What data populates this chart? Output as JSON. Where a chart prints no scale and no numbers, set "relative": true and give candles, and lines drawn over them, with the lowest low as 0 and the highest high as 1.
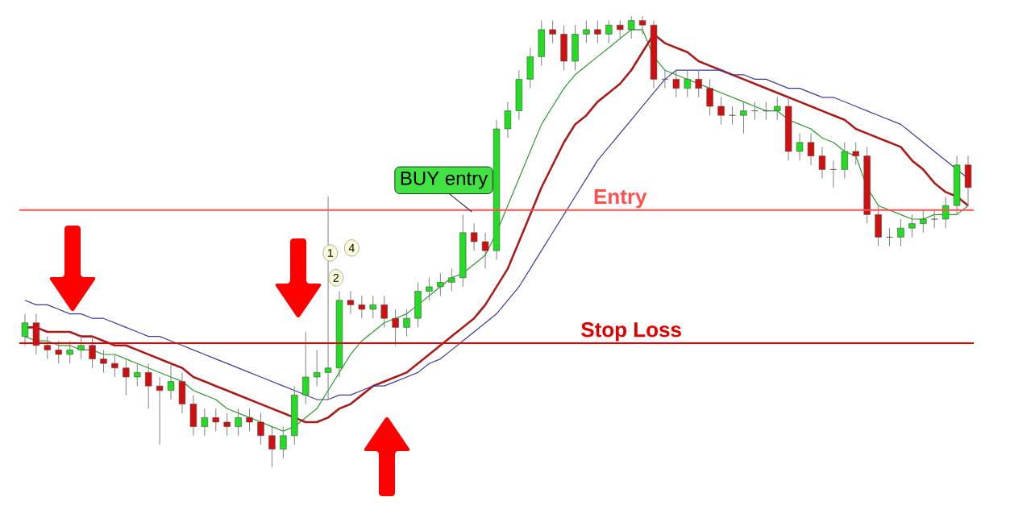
{
  "chart_data": {
    "type": "candlestick",
    "relative": true,
    "categories": [
      null,
      null,
      null,
      null,
      null,
      null,
      null,
      null,
      null,
      null,
      null,
      null,
      null,
      null,
      null,
      null,
      null,
      null,
      null,
      null,
      null,
      null,
      null,
      null,
      null,
      null,
      null,
      null,
      null,
      null,
      null,
      null,
      null,
      null,
      null,
      null,
      null,
      null,
      null,
      null,
      null,
      null,
      null,
      null,
      null,
      null,
      null,
      null,
      null,
      null,
      null,
      null,
      null,
      null,
      null,
      null,
      null,
      null,
      null,
      null,
      null,
      null,
      null,
      null,
      null,
      null,
      null,
      null,
      null,
      null,
      null,
      null,
      null,
      null,
      null,
      null,
      null,
      null,
      null,
      null,
      null,
      null,
      null,
      null,
      null
    ],
    "ohlc": [
      [
        0.29,
        0.34,
        0.27,
        0.32
      ],
      [
        0.32,
        0.34,
        0.25,
        0.27
      ],
      [
        0.27,
        0.29,
        0.24,
        0.26
      ],
      [
        0.26,
        0.28,
        0.23,
        0.25
      ],
      [
        0.25,
        0.28,
        0.23,
        0.26
      ],
      [
        0.26,
        0.29,
        0.24,
        0.27
      ],
      [
        0.27,
        0.29,
        0.22,
        0.24
      ],
      [
        0.24,
        0.26,
        0.21,
        0.23
      ],
      [
        0.23,
        0.25,
        0.2,
        0.22
      ],
      [
        0.22,
        0.24,
        0.16,
        0.2
      ],
      [
        0.2,
        0.23,
        0.18,
        0.21
      ],
      [
        0.21,
        0.23,
        0.13,
        0.18
      ],
      [
        0.18,
        0.2,
        0.05,
        0.17
      ],
      [
        0.17,
        0.23,
        0.15,
        0.19
      ],
      [
        0.19,
        0.21,
        0.12,
        0.14
      ],
      [
        0.14,
        0.16,
        0.07,
        0.09
      ],
      [
        0.09,
        0.13,
        0.07,
        0.11
      ],
      [
        0.11,
        0.13,
        0.08,
        0.1
      ],
      [
        0.1,
        0.12,
        0.07,
        0.09
      ],
      [
        0.09,
        0.13,
        0.07,
        0.11
      ],
      [
        0.11,
        0.13,
        0.08,
        0.1
      ],
      [
        0.1,
        0.12,
        0.05,
        0.07
      ],
      [
        0.07,
        0.09,
        0.0,
        0.04
      ],
      [
        0.04,
        0.09,
        0.02,
        0.07
      ],
      [
        0.07,
        0.18,
        0.05,
        0.16
      ],
      [
        0.16,
        0.3,
        0.14,
        0.2
      ],
      [
        0.2,
        0.26,
        0.18,
        0.21
      ],
      [
        0.21,
        0.6,
        0.15,
        0.22
      ],
      [
        0.22,
        0.39,
        0.2,
        0.37
      ],
      [
        0.37,
        0.39,
        0.34,
        0.36
      ],
      [
        0.36,
        0.38,
        0.33,
        0.35
      ],
      [
        0.35,
        0.38,
        0.33,
        0.36
      ],
      [
        0.36,
        0.38,
        0.31,
        0.33
      ],
      [
        0.33,
        0.35,
        0.27,
        0.31
      ],
      [
        0.31,
        0.35,
        0.29,
        0.33
      ],
      [
        0.33,
        0.41,
        0.31,
        0.39
      ],
      [
        0.39,
        0.42,
        0.37,
        0.4
      ],
      [
        0.4,
        0.43,
        0.38,
        0.41
      ],
      [
        0.41,
        0.44,
        0.39,
        0.42
      ],
      [
        0.42,
        0.56,
        0.4,
        0.52
      ],
      [
        0.52,
        0.54,
        0.48,
        0.5
      ],
      [
        0.5,
        0.52,
        0.44,
        0.48
      ],
      [
        0.48,
        0.77,
        0.46,
        0.75
      ],
      [
        0.75,
        0.81,
        0.73,
        0.79
      ],
      [
        0.79,
        0.88,
        0.77,
        0.86
      ],
      [
        0.86,
        0.93,
        0.84,
        0.91
      ],
      [
        0.91,
        0.99,
        0.89,
        0.97
      ],
      [
        0.97,
        0.99,
        0.94,
        0.96
      ],
      [
        0.96,
        0.98,
        0.88,
        0.9
      ],
      [
        0.9,
        0.98,
        0.88,
        0.96
      ],
      [
        0.96,
        0.99,
        0.94,
        0.97
      ],
      [
        0.97,
        0.99,
        0.94,
        0.96
      ],
      [
        0.96,
        0.99,
        0.94,
        0.98
      ],
      [
        0.98,
        0.99,
        0.95,
        0.97
      ],
      [
        0.97,
        1.0,
        0.95,
        0.99
      ],
      [
        0.99,
        1.0,
        0.96,
        0.98
      ],
      [
        0.98,
        0.99,
        0.84,
        0.86
      ],
      [
        0.86,
        0.88,
        0.84,
        0.86
      ],
      [
        0.86,
        0.88,
        0.82,
        0.84
      ],
      [
        0.84,
        0.88,
        0.82,
        0.86
      ],
      [
        0.86,
        0.88,
        0.82,
        0.84
      ],
      [
        0.84,
        0.86,
        0.78,
        0.8
      ],
      [
        0.8,
        0.82,
        0.76,
        0.78
      ],
      [
        0.78,
        0.8,
        0.76,
        0.78
      ],
      [
        0.78,
        0.81,
        0.74,
        0.79
      ],
      [
        0.79,
        0.81,
        0.77,
        0.79
      ],
      [
        0.79,
        0.81,
        0.77,
        0.79
      ],
      [
        0.79,
        0.82,
        0.77,
        0.8
      ],
      [
        0.8,
        0.82,
        0.68,
        0.7
      ],
      [
        0.7,
        0.74,
        0.68,
        0.72
      ],
      [
        0.72,
        0.74,
        0.67,
        0.69
      ],
      [
        0.69,
        0.71,
        0.64,
        0.66
      ],
      [
        0.66,
        0.68,
        0.62,
        0.66
      ],
      [
        0.66,
        0.72,
        0.64,
        0.7
      ],
      [
        0.7,
        0.72,
        0.67,
        0.69
      ],
      [
        0.69,
        0.71,
        0.54,
        0.56
      ],
      [
        0.56,
        0.58,
        0.49,
        0.51
      ],
      [
        0.51,
        0.53,
        0.49,
        0.51
      ],
      [
        0.51,
        0.55,
        0.49,
        0.53
      ],
      [
        0.53,
        0.56,
        0.51,
        0.54
      ],
      [
        0.54,
        0.57,
        0.52,
        0.55
      ],
      [
        0.55,
        0.57,
        0.53,
        0.55
      ],
      [
        0.55,
        0.6,
        0.53,
        0.58
      ],
      [
        0.58,
        0.69,
        0.56,
        0.67
      ],
      [
        0.67,
        0.69,
        0.58,
        0.62
      ]
    ],
    "series": [
      {
        "type": "line",
        "color": "#2e9a2e",
        "values": [
          0.29,
          0.28,
          0.28,
          0.27,
          0.27,
          0.26,
          0.26,
          0.25,
          0.25,
          0.24,
          0.23,
          0.22,
          0.21,
          0.2,
          0.19,
          0.17,
          0.16,
          0.15,
          0.13,
          0.12,
          0.11,
          0.1,
          0.09,
          0.08,
          0.09,
          0.11,
          0.13,
          0.17,
          0.21,
          0.25,
          0.28,
          0.3,
          0.32,
          0.33,
          0.34,
          0.36,
          0.38,
          0.4,
          0.42,
          0.43,
          0.45,
          0.47,
          0.52,
          0.58,
          0.64,
          0.7,
          0.76,
          0.8,
          0.84,
          0.87,
          0.89,
          0.91,
          0.93,
          0.95,
          0.97,
          0.97,
          0.91,
          0.88,
          0.87,
          0.86,
          0.85,
          0.84,
          0.83,
          0.82,
          0.81,
          0.8,
          0.79,
          0.79,
          0.77,
          0.76,
          0.75,
          0.73,
          0.72,
          0.7,
          0.69,
          0.62,
          0.58,
          0.57,
          0.56,
          0.55,
          0.55,
          0.56,
          0.56,
          0.56,
          0.58
        ]
      },
      {
        "type": "line",
        "color": "#a81c1c",
        "values": [
          0.31,
          0.31,
          0.3,
          0.3,
          0.3,
          0.29,
          0.29,
          0.28,
          0.27,
          0.27,
          0.26,
          0.25,
          0.24,
          0.23,
          0.22,
          0.2,
          0.19,
          0.18,
          0.17,
          0.16,
          0.15,
          0.14,
          0.13,
          0.12,
          0.11,
          0.1,
          0.1,
          0.11,
          0.13,
          0.14,
          0.16,
          0.18,
          0.19,
          0.2,
          0.21,
          0.23,
          0.25,
          0.27,
          0.29,
          0.31,
          0.33,
          0.36,
          0.4,
          0.44,
          0.5,
          0.56,
          0.62,
          0.67,
          0.72,
          0.76,
          0.78,
          0.81,
          0.83,
          0.85,
          0.88,
          0.92,
          0.96,
          0.94,
          0.93,
          0.92,
          0.9,
          0.89,
          0.88,
          0.87,
          0.86,
          0.85,
          0.84,
          0.83,
          0.82,
          0.81,
          0.8,
          0.79,
          0.78,
          0.77,
          0.75,
          0.74,
          0.73,
          0.72,
          0.71,
          0.68,
          0.66,
          0.63,
          0.61,
          0.6,
          0.58
        ]
      },
      {
        "type": "line",
        "color": "#3c3c9c",
        "values": [
          0.37,
          0.36,
          0.36,
          0.35,
          0.34,
          0.34,
          0.33,
          0.33,
          0.32,
          0.31,
          0.3,
          0.29,
          0.29,
          0.28,
          0.27,
          0.26,
          0.25,
          0.24,
          0.23,
          0.22,
          0.21,
          0.2,
          0.19,
          0.18,
          0.17,
          0.16,
          0.15,
          0.15,
          0.16,
          0.16,
          0.17,
          0.18,
          0.18,
          0.19,
          0.2,
          0.21,
          0.23,
          0.24,
          0.26,
          0.28,
          0.3,
          0.32,
          0.34,
          0.37,
          0.4,
          0.44,
          0.48,
          0.52,
          0.56,
          0.6,
          0.64,
          0.68,
          0.71,
          0.74,
          0.77,
          0.8,
          0.83,
          0.86,
          0.88,
          0.88,
          0.88,
          0.88,
          0.88,
          0.87,
          0.87,
          0.86,
          0.86,
          0.85,
          0.84,
          0.84,
          0.83,
          0.82,
          0.82,
          0.81,
          0.8,
          0.79,
          0.78,
          0.77,
          0.76,
          0.74,
          0.72,
          0.7,
          0.68,
          0.66,
          0.64
        ]
      }
    ],
    "ref_lines": [
      {
        "axis": "y",
        "value": 0.57,
        "label": "Entry",
        "color": "#ff5050"
      },
      {
        "axis": "y",
        "value": 0.275,
        "label": "Stop Loss",
        "color": "#e00000"
      }
    ],
    "annotations": [
      "BUY entry",
      "1",
      "4",
      "2"
    ]
  }
}
